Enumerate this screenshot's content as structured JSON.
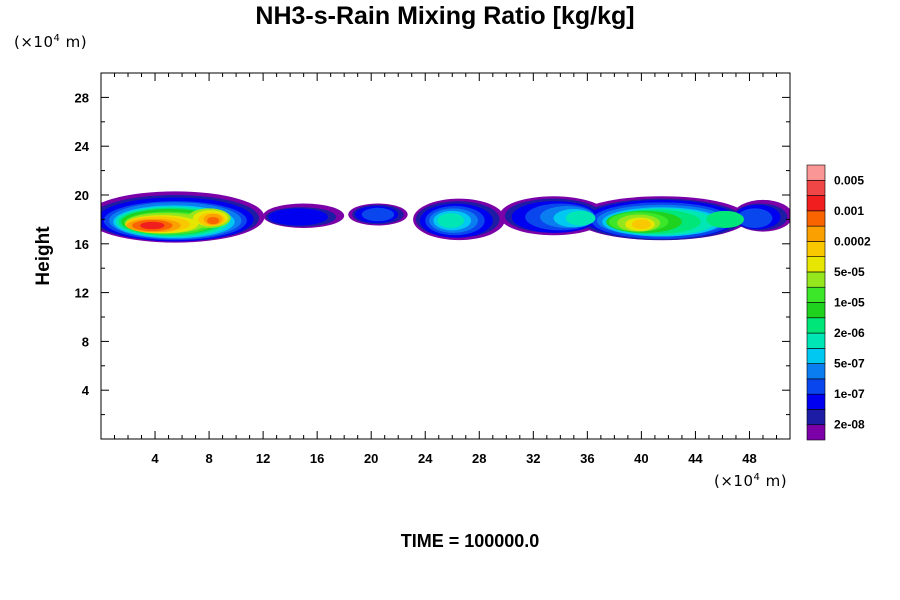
{
  "chart_data": {
    "type": "heatmap",
    "title": "NH3-s-Rain Mixing Ratio [kg/kg]",
    "ylabel": "Height",
    "x_unit_prefix": "(×10",
    "x_unit_exp": "4",
    "x_unit_suffix": " m)",
    "y_unit_prefix": "(×10",
    "y_unit_exp": "4",
    "y_unit_suffix": " m)",
    "xlim": [
      0,
      51
    ],
    "ylim": [
      0,
      30
    ],
    "x_ticks": [
      4,
      8,
      12,
      16,
      20,
      24,
      28,
      32,
      36,
      40,
      44,
      48
    ],
    "x_tick_labels": [
      "4",
      "8",
      "12",
      "16",
      "20",
      "24",
      "28",
      "32",
      "36",
      "40",
      "44",
      "48"
    ],
    "y_ticks": [
      4,
      8,
      12,
      16,
      20,
      24,
      28
    ],
    "y_tick_labels": [
      "4",
      "8",
      "12",
      "16",
      "20",
      "24",
      "28"
    ],
    "colorbar": {
      "colors": [
        "#7b00a8",
        "#1c1ca4",
        "#0000f0",
        "#0a46ee",
        "#0a7ef0",
        "#00c8f0",
        "#00e6b4",
        "#00e678",
        "#1ed21e",
        "#3ce628",
        "#96e61e",
        "#e6e600",
        "#fac800",
        "#faa000",
        "#fa6400",
        "#f01e1e",
        "#f04646",
        "#fa9696"
      ],
      "labels": [
        "2e-08",
        "1e-07",
        "5e-07",
        "2e-06",
        "1e-05",
        "5e-05",
        "0.0002",
        "0.001",
        "0.005"
      ]
    },
    "regions": [
      {
        "x_range": [
          0,
          13
        ],
        "y_range": [
          16.3,
          20.2
        ],
        "peak_value": 0.005,
        "peak_x": 4,
        "peak_y": 17.5
      },
      {
        "x_range": [
          13,
          18
        ],
        "y_range": [
          17,
          19.3
        ],
        "peak_value": 2e-07
      },
      {
        "x_range": [
          18.5,
          22.5
        ],
        "y_range": [
          17.5,
          19.3
        ],
        "peak_value": 5e-06
      },
      {
        "x_range": [
          23.5,
          30
        ],
        "y_range": [
          16.5,
          19.5
        ],
        "peak_value": 3e-05,
        "peak_x": 26,
        "peak_y": 18
      },
      {
        "x_range": [
          30,
          51
        ],
        "y_range": [
          16.3,
          19.9
        ],
        "peak_value": 0.0005,
        "peak_x": 40,
        "peak_y": 17.6
      }
    ]
  },
  "footer": "TIME = 100000.0"
}
